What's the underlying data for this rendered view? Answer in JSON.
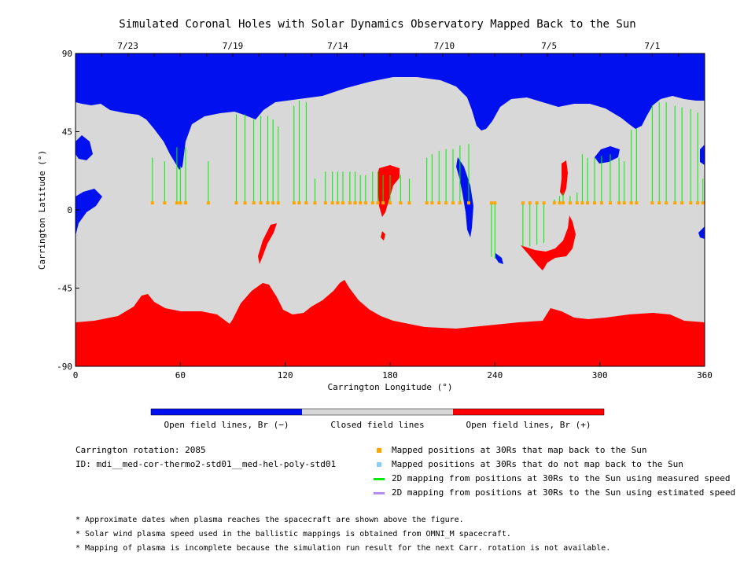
{
  "chart_data": {
    "type": "heatmap",
    "title": "Simulated Coronal Holes with Solar Dynamics Observatory Mapped Back to the Sun",
    "xlabel": "Carrington Longitude (°)",
    "ylabel": "Carrington Latitude (°)",
    "xlim": [
      0,
      360
    ],
    "ylim": [
      -90,
      90
    ],
    "x_ticks": [
      "0",
      "60",
      "120",
      "180",
      "240",
      "300",
      "360"
    ],
    "y_ticks": [
      "90",
      "45",
      "0",
      "-45",
      "-90"
    ],
    "top_dates": [
      {
        "label": "7/23",
        "lon": 30
      },
      {
        "label": "7/19",
        "lon": 90
      },
      {
        "label": "7/14",
        "lon": 150
      },
      {
        "label": "7/10",
        "lon": 211
      },
      {
        "label": "7/5",
        "lon": 271
      },
      {
        "label": "7/1",
        "lon": 330
      }
    ],
    "colorbar": [
      {
        "label": "Open field lines, Br (−)",
        "color": "#0010ee"
      },
      {
        "label": "Closed field lines",
        "color": "#d8d8d8"
      },
      {
        "label": "Open field lines, Br (+)",
        "color": "#ff0000"
      }
    ],
    "mapped_longitudes": [
      44,
      51,
      58,
      60,
      63,
      76,
      92,
      97,
      102,
      106,
      110,
      113,
      116,
      125,
      128,
      132,
      137,
      143,
      147,
      150,
      153,
      157,
      160,
      163,
      166,
      170,
      173,
      176,
      180,
      186,
      191,
      201,
      204,
      208,
      212,
      216,
      220,
      225,
      238,
      240,
      256,
      260,
      264,
      268,
      274,
      277,
      279,
      283,
      287,
      290,
      293,
      297,
      301,
      306,
      311,
      314,
      318,
      321,
      330,
      334,
      338,
      343,
      347,
      352,
      356,
      359
    ],
    "mapped_latitude": 4,
    "field_line_feet": [
      [
        44,
        30
      ],
      [
        51,
        28
      ],
      [
        58,
        36
      ],
      [
        60,
        25
      ],
      [
        63,
        36
      ],
      [
        76,
        28
      ],
      [
        92,
        55
      ],
      [
        97,
        55
      ],
      [
        102,
        52
      ],
      [
        106,
        54
      ],
      [
        110,
        54
      ],
      [
        113,
        52
      ],
      [
        116,
        48
      ],
      [
        125,
        60
      ],
      [
        128,
        63
      ],
      [
        132,
        62
      ],
      [
        137,
        18
      ],
      [
        143,
        22
      ],
      [
        147,
        22
      ],
      [
        150,
        22
      ],
      [
        153,
        22
      ],
      [
        157,
        22
      ],
      [
        160,
        22
      ],
      [
        163,
        20
      ],
      [
        166,
        20
      ],
      [
        170,
        22
      ],
      [
        173,
        22
      ],
      [
        176,
        20
      ],
      [
        180,
        20
      ],
      [
        186,
        20
      ],
      [
        191,
        18
      ],
      [
        201,
        30
      ],
      [
        204,
        32
      ],
      [
        208,
        34
      ],
      [
        212,
        35
      ],
      [
        216,
        35
      ],
      [
        220,
        37
      ],
      [
        225,
        38
      ],
      [
        238,
        -27
      ],
      [
        240,
        -28
      ],
      [
        256,
        -21
      ],
      [
        260,
        -21
      ],
      [
        264,
        -20
      ],
      [
        268,
        -19
      ],
      [
        274,
        6
      ],
      [
        277,
        8
      ],
      [
        279,
        10
      ],
      [
        283,
        8
      ],
      [
        287,
        10
      ],
      [
        290,
        32
      ],
      [
        293,
        30
      ],
      [
        297,
        30
      ],
      [
        301,
        31
      ],
      [
        306,
        32
      ],
      [
        311,
        30
      ],
      [
        314,
        28
      ],
      [
        318,
        46
      ],
      [
        321,
        47
      ],
      [
        330,
        60
      ],
      [
        334,
        62
      ],
      [
        338,
        62
      ],
      [
        343,
        60
      ],
      [
        347,
        59
      ],
      [
        352,
        58
      ],
      [
        356,
        56
      ],
      [
        359,
        18
      ]
    ],
    "info": {
      "rotation": "Carrington rotation: 2085",
      "id": "ID: mdi__med-cor-thermo2-std01__med-hel-poly-std01"
    },
    "legend": [
      {
        "label": "Mapped positions at 30Rs that map back to the Sun",
        "color": "#ffa500",
        "kind": "square"
      },
      {
        "label": "Mapped positions at 30Rs that do not map back to the Sun",
        "color": "#87cefa",
        "kind": "square"
      },
      {
        "label": "2D mapping from positions at 30Rs to the Sun using measured speed",
        "color": "#00ee00",
        "kind": "line"
      },
      {
        "label": "2D mapping from positions at 30Rs to the Sun using estimated speed",
        "color": "#b58cf0",
        "kind": "line"
      }
    ],
    "notes": [
      "* Approximate dates when plasma reaches the spacecraft are shown above the figure.",
      "* Solar wind plasma speed used in the ballistic mappings is obtained from OMNI_M spacecraft.",
      "* Mapping of plasma is incomplete because the simulation run result for the next Carr. rotation is not available."
    ],
    "colors": {
      "blue": "#0010ee",
      "gray": "#d8d8d8",
      "red": "#ff0000",
      "green": "#00ee00",
      "orange": "#ffa500"
    }
  }
}
